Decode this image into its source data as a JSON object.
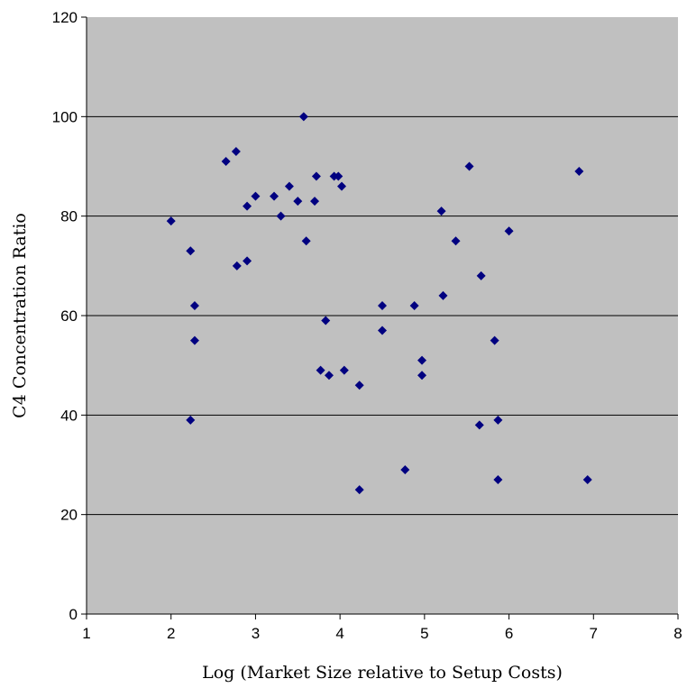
{
  "chart_data": {
    "type": "scatter",
    "title": "",
    "xlabel": "Log (Market Size relative to Setup Costs)",
    "ylabel": "C4 Concentration Ratio",
    "xlim": [
      1,
      8
    ],
    "ylim": [
      0,
      120
    ],
    "xticks": [
      1,
      2,
      3,
      4,
      5,
      6,
      7,
      8
    ],
    "yticks": [
      0,
      20,
      40,
      60,
      80,
      100,
      120
    ],
    "grid": "horizontal major",
    "legend": "none",
    "colors": {
      "plot_background": "#c0c0c0",
      "marker": "#000080",
      "gridline": "#000000"
    },
    "marker_shape": "diamond",
    "series": [
      {
        "points": [
          [
            2.0,
            79
          ],
          [
            2.23,
            73
          ],
          [
            2.28,
            62
          ],
          [
            2.28,
            55
          ],
          [
            2.23,
            39
          ],
          [
            2.65,
            91
          ],
          [
            2.77,
            93
          ],
          [
            2.78,
            70
          ],
          [
            2.9,
            71
          ],
          [
            2.9,
            82
          ],
          [
            3.0,
            84
          ],
          [
            3.22,
            84
          ],
          [
            3.3,
            80
          ],
          [
            3.4,
            86
          ],
          [
            3.5,
            83
          ],
          [
            3.57,
            100
          ],
          [
            3.6,
            75
          ],
          [
            3.7,
            83
          ],
          [
            3.72,
            88
          ],
          [
            3.77,
            49
          ],
          [
            3.83,
            59
          ],
          [
            3.87,
            48
          ],
          [
            3.93,
            88
          ],
          [
            3.98,
            88
          ],
          [
            4.02,
            86
          ],
          [
            4.05,
            49
          ],
          [
            4.23,
            46
          ],
          [
            4.23,
            25
          ],
          [
            4.5,
            62
          ],
          [
            4.5,
            57
          ],
          [
            4.77,
            29
          ],
          [
            4.88,
            62
          ],
          [
            4.97,
            51
          ],
          [
            4.97,
            48
          ],
          [
            5.2,
            81
          ],
          [
            5.22,
            64
          ],
          [
            5.37,
            75
          ],
          [
            5.53,
            90
          ],
          [
            5.65,
            38
          ],
          [
            5.67,
            68
          ],
          [
            5.83,
            55
          ],
          [
            5.87,
            39
          ],
          [
            5.87,
            27
          ],
          [
            6.0,
            77
          ],
          [
            6.83,
            89
          ],
          [
            6.93,
            27
          ]
        ]
      }
    ]
  }
}
